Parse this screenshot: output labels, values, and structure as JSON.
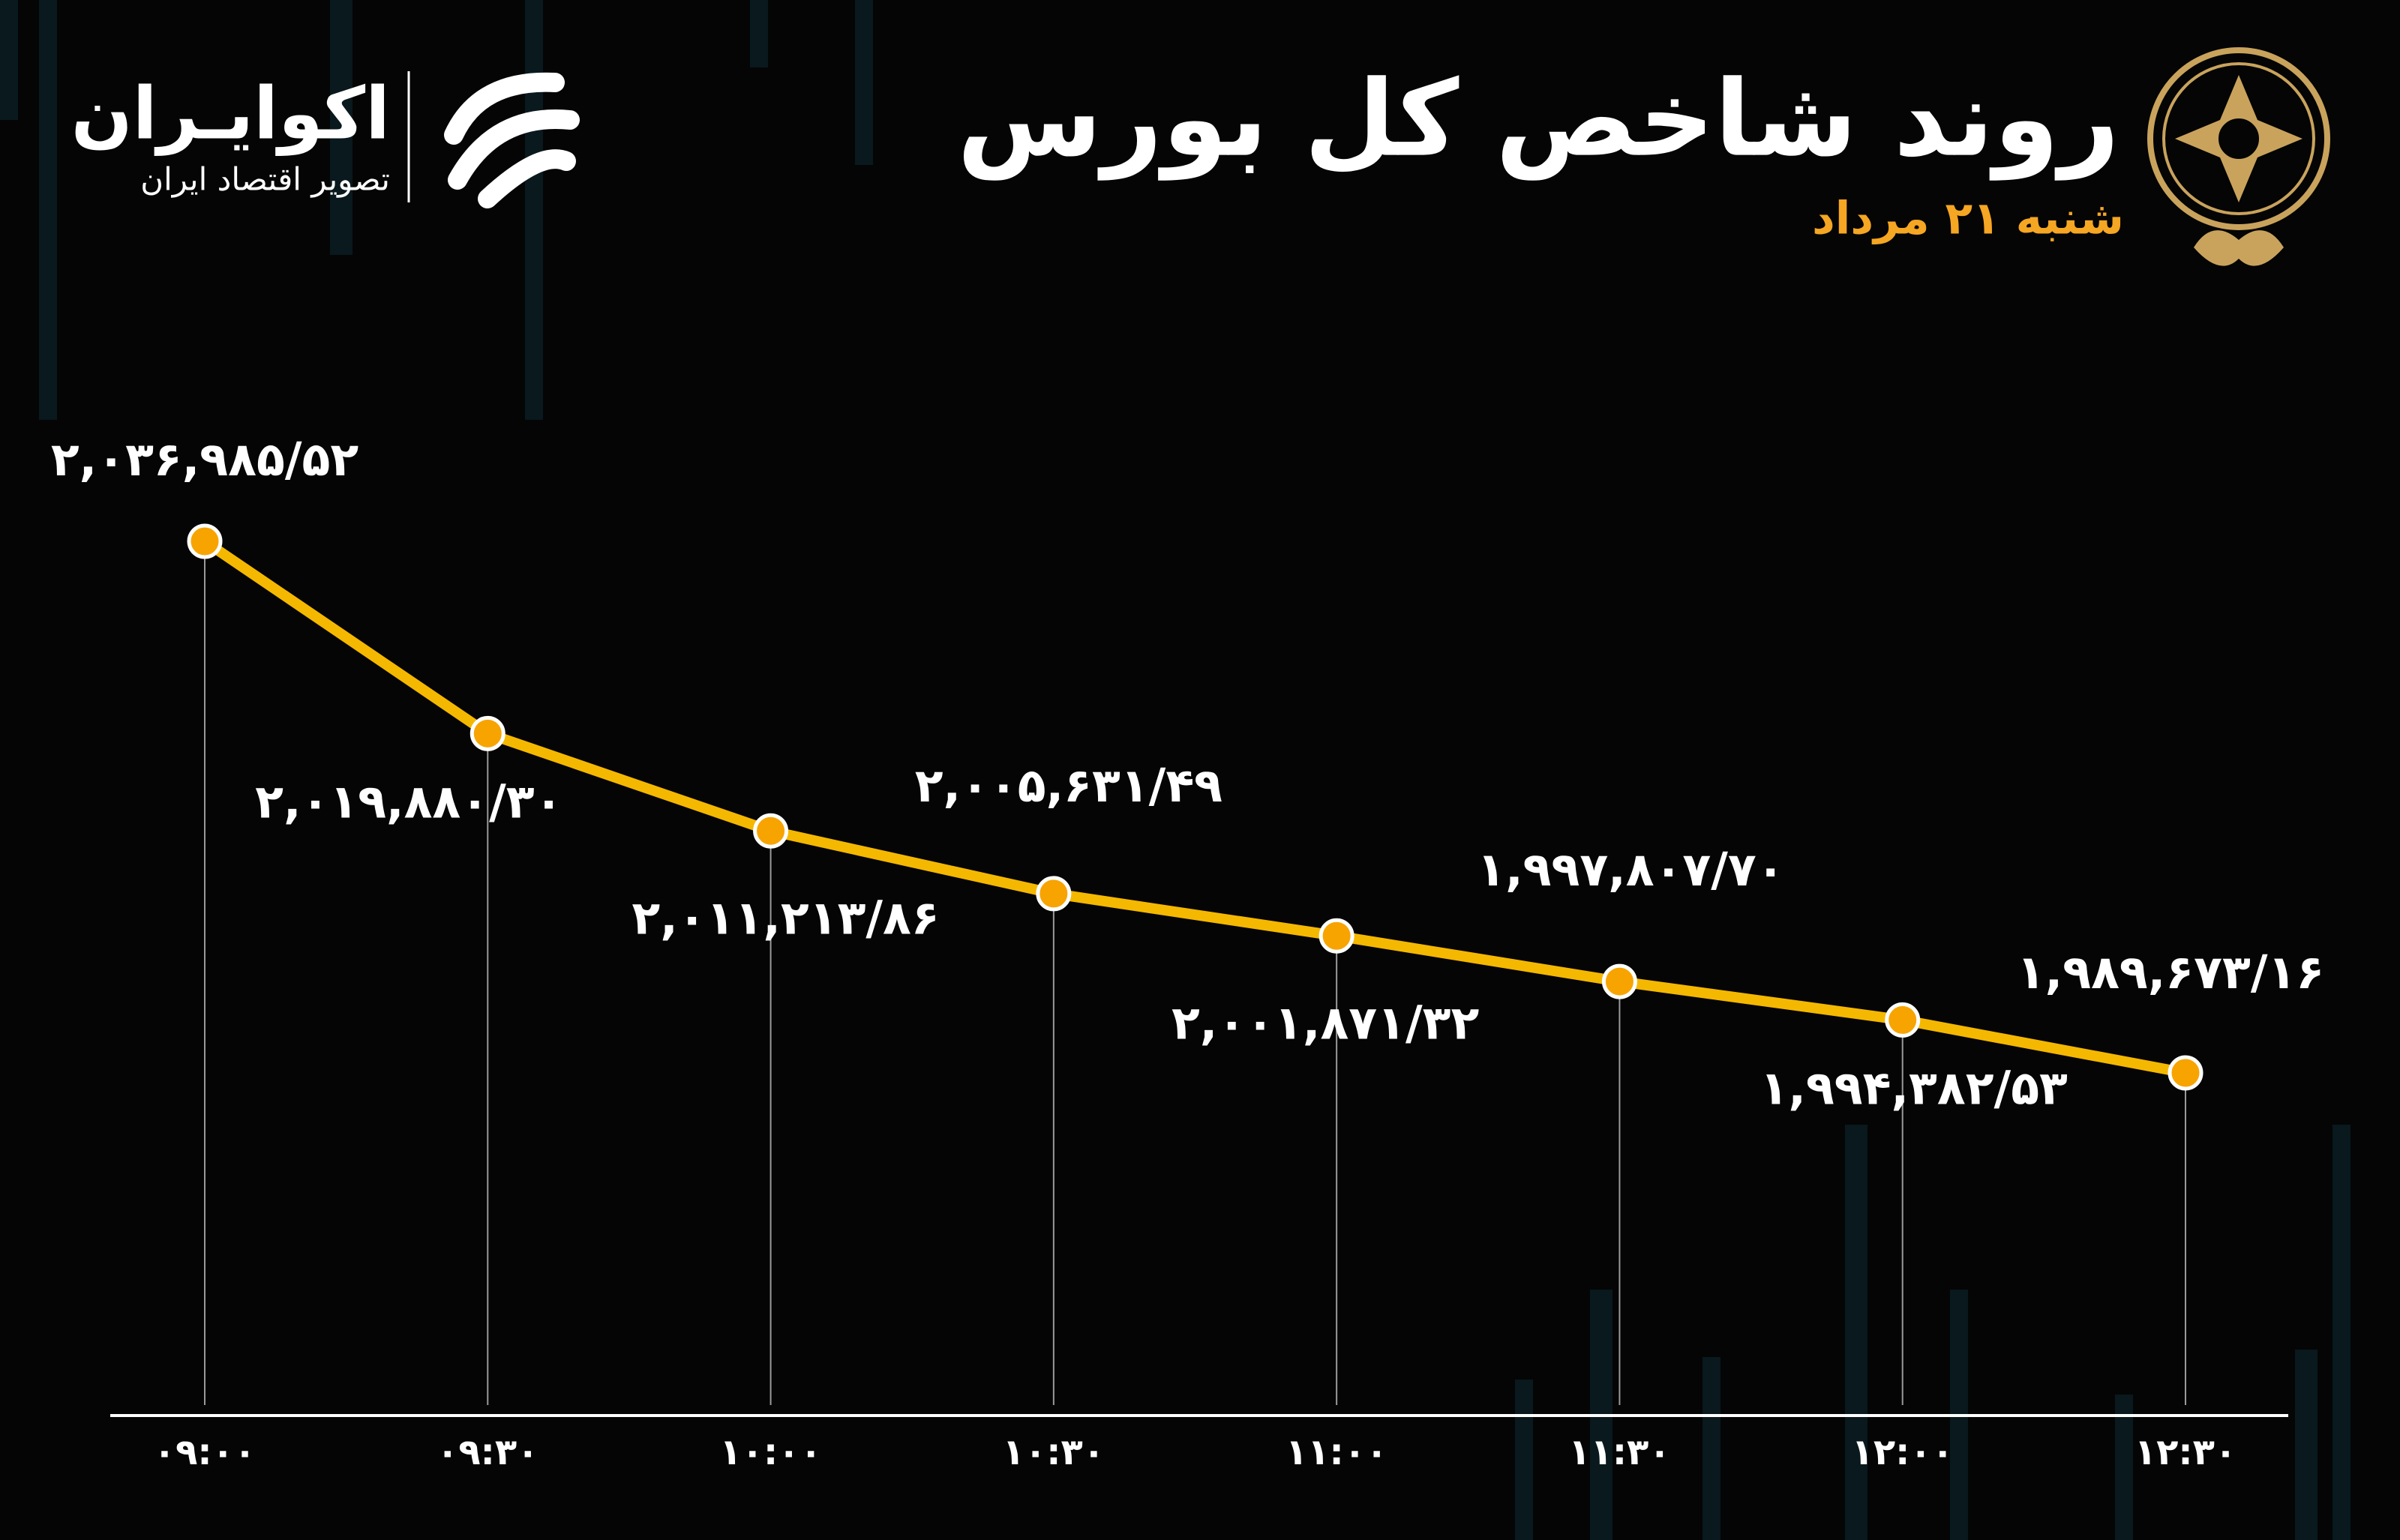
{
  "brand": {
    "name": "اکوایـران",
    "tagline": "تصویر اقتصاد ایران"
  },
  "chart_data": {
    "type": "line",
    "title": "روند شاخص کل بورس",
    "subtitle": "شنبه ۲۱ مرداد",
    "categories": [
      "۰۹:۰۰",
      "۰۹:۳۰",
      "۱۰:۰۰",
      "۱۰:۳۰",
      "۱۱:۰۰",
      "۱۱:۳۰",
      "۱۲:۰۰",
      "۱۲:۳۰"
    ],
    "series": [
      {
        "name": "شاخص کل",
        "color": "#f5b800",
        "marker_color": "#f7a400",
        "values": [
          2036985.52,
          2019880.3,
          2011213.86,
          2005631.49,
          2001871.32,
          1997807.7,
          1994382.53,
          1989673.16
        ],
        "value_labels": [
          "۲,۰۳۶,۹۸۵/۵۲",
          "۲,۰۱۹,۸۸۰/۳۰",
          "۲,۰۱۱,۲۱۳/۸۶",
          "۲,۰۰۵,۶۳۱/۴۹",
          "۲,۰۰۱,۸۷۱/۳۲",
          "۱,۹۹۷,۸۰۷/۷۰",
          "۱,۹۹۴,۳۸۲/۵۳",
          "۱,۹۸۹,۶۷۳/۱۶"
        ]
      }
    ]
  }
}
